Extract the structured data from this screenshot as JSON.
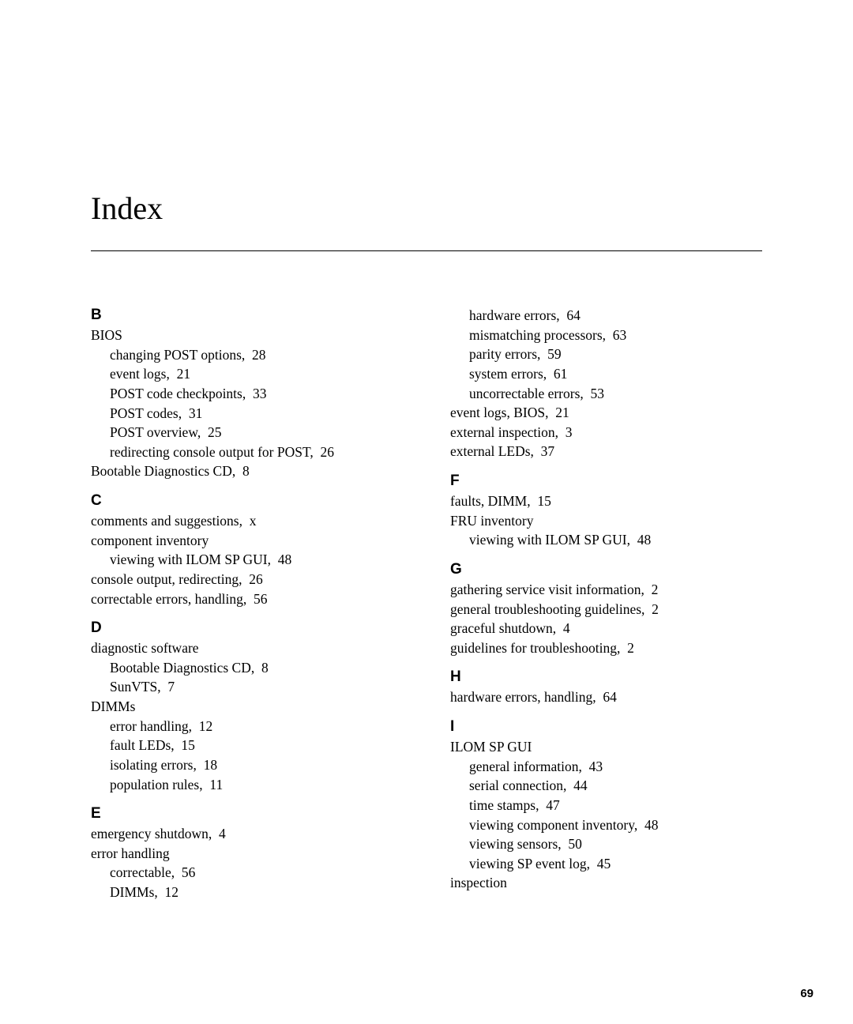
{
  "title": "Index",
  "page_number": "69",
  "left_sections": [
    {
      "letter": "B",
      "entries": [
        {
          "text": "BIOS",
          "sub": false
        },
        {
          "text": "changing POST options,  28",
          "sub": true
        },
        {
          "text": "event logs,  21",
          "sub": true
        },
        {
          "text": "POST code checkpoints,  33",
          "sub": true
        },
        {
          "text": "POST codes,  31",
          "sub": true
        },
        {
          "text": "POST overview,  25",
          "sub": true
        },
        {
          "text": "redirecting console output for POST,  26",
          "sub": true
        },
        {
          "text": "Bootable Diagnostics CD,  8",
          "sub": false
        }
      ]
    },
    {
      "letter": "C",
      "entries": [
        {
          "text": "comments and suggestions,  x",
          "sub": false
        },
        {
          "text": "component inventory",
          "sub": false
        },
        {
          "text": "viewing with ILOM SP GUI,  48",
          "sub": true
        },
        {
          "text": "console output, redirecting,  26",
          "sub": false
        },
        {
          "text": "correctable errors, handling,  56",
          "sub": false
        }
      ]
    },
    {
      "letter": "D",
      "entries": [
        {
          "text": "diagnostic software",
          "sub": false
        },
        {
          "text": "Bootable Diagnostics CD,  8",
          "sub": true
        },
        {
          "text": "SunVTS,  7",
          "sub": true
        },
        {
          "text": "DIMMs",
          "sub": false
        },
        {
          "text": "error handling,  12",
          "sub": true
        },
        {
          "text": "fault LEDs,  15",
          "sub": true
        },
        {
          "text": "isolating errors,  18",
          "sub": true
        },
        {
          "text": "population rules,  11",
          "sub": true
        }
      ]
    },
    {
      "letter": "E",
      "entries": [
        {
          "text": "emergency shutdown,  4",
          "sub": false
        },
        {
          "text": "error handling",
          "sub": false
        },
        {
          "text": "correctable,  56",
          "sub": true
        },
        {
          "text": "DIMMs,  12",
          "sub": true
        }
      ]
    }
  ],
  "right_sections": [
    {
      "letter": "",
      "entries": [
        {
          "text": "hardware errors,  64",
          "sub": true
        },
        {
          "text": "mismatching processors,  63",
          "sub": true
        },
        {
          "text": "parity errors,  59",
          "sub": true
        },
        {
          "text": "system errors,  61",
          "sub": true
        },
        {
          "text": "uncorrectable errors,  53",
          "sub": true
        },
        {
          "text": "event logs, BIOS,  21",
          "sub": false
        },
        {
          "text": "external inspection,  3",
          "sub": false
        },
        {
          "text": "external LEDs,  37",
          "sub": false
        }
      ]
    },
    {
      "letter": "F",
      "entries": [
        {
          "text": "faults, DIMM,  15",
          "sub": false
        },
        {
          "text": "FRU inventory",
          "sub": false
        },
        {
          "text": "viewing with ILOM SP GUI,  48",
          "sub": true
        }
      ]
    },
    {
      "letter": "G",
      "entries": [
        {
          "text": "gathering service visit information,  2",
          "sub": false
        },
        {
          "text": "general troubleshooting guidelines,  2",
          "sub": false
        },
        {
          "text": "graceful shutdown,  4",
          "sub": false
        },
        {
          "text": "guidelines for troubleshooting,  2",
          "sub": false
        }
      ]
    },
    {
      "letter": "H",
      "entries": [
        {
          "text": "hardware errors, handling,  64",
          "sub": false
        }
      ]
    },
    {
      "letter": "I",
      "entries": [
        {
          "text": "ILOM SP GUI",
          "sub": false
        },
        {
          "text": "general information,  43",
          "sub": true
        },
        {
          "text": "serial connection,  44",
          "sub": true
        },
        {
          "text": "time stamps,  47",
          "sub": true
        },
        {
          "text": "viewing component inventory,  48",
          "sub": true
        },
        {
          "text": "viewing sensors,  50",
          "sub": true
        },
        {
          "text": "viewing SP event log,  45",
          "sub": true
        },
        {
          "text": "inspection",
          "sub": false
        }
      ]
    }
  ]
}
